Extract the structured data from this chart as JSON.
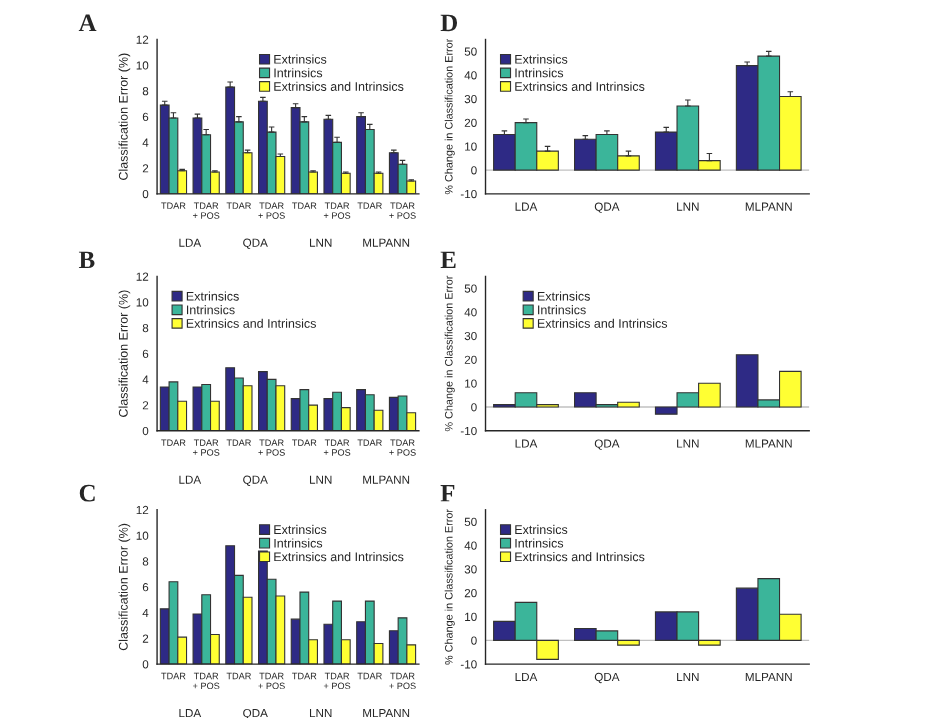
{
  "chart_data": [
    {
      "type": "bar",
      "title": "A",
      "ylabel": "Classification Error (%)",
      "categories": [
        "TDAR",
        "TDAR\n+ POS",
        "TDAR",
        "TDAR\n+ POS",
        "TDAR",
        "TDAR\n+ POS",
        "TDAR",
        "TDAR\n+ POS"
      ],
      "annotations": [
        "LDA",
        "QDA",
        "LNN",
        "MLPANN"
      ],
      "ylim": [
        0,
        12
      ],
      "yticks": [
        0,
        2,
        4,
        6,
        8,
        10,
        12
      ],
      "legend": "top right",
      "series": [
        {
          "name": "Extrinsics",
          "color": "#2e2a85",
          "values": [
            6.9,
            5.9,
            8.3,
            7.2,
            6.7,
            5.8,
            6.0,
            3.2
          ],
          "errors": [
            0.3,
            0.3,
            0.4,
            0.3,
            0.3,
            0.3,
            0.3,
            0.2
          ]
        },
        {
          "name": "Intrinsics",
          "color": "#3bb59a",
          "values": [
            5.9,
            4.6,
            5.6,
            4.8,
            5.6,
            4.0,
            5.0,
            2.3
          ],
          "errors": [
            0.4,
            0.4,
            0.4,
            0.4,
            0.4,
            0.4,
            0.4,
            0.3
          ]
        },
        {
          "name": "Extrinsics and Intrinsics",
          "color": "#ffff33",
          "values": [
            1.8,
            1.7,
            3.2,
            2.9,
            1.7,
            1.6,
            1.6,
            1.0
          ],
          "errors": [
            0.1,
            0.1,
            0.2,
            0.2,
            0.1,
            0.1,
            0.1,
            0.1
          ]
        }
      ]
    },
    {
      "type": "bar",
      "title": "D",
      "ylabel": "% Change in Classification Error",
      "categories": [
        "LDA",
        "QDA",
        "LNN",
        "MLPANN"
      ],
      "ylim": [
        -10,
        55
      ],
      "yticks": [
        -10,
        0,
        10,
        20,
        30,
        40,
        50
      ],
      "legend": "top left",
      "ref_lines": [
        {
          "axis": "y",
          "value": 0,
          "color": "#c0c0c0"
        }
      ],
      "series": [
        {
          "name": "Extrinsics",
          "color": "#2e2a85",
          "values": [
            15,
            13,
            16,
            44
          ],
          "errors": [
            1.5,
            1.5,
            2,
            1.5
          ]
        },
        {
          "name": "Intrinsics",
          "color": "#3bb59a",
          "values": [
            20,
            15,
            27,
            48
          ],
          "errors": [
            1.5,
            1.5,
            2.5,
            2
          ]
        },
        {
          "name": "Extrinsics and Intrinsics",
          "color": "#ffff33",
          "values": [
            8,
            6,
            4,
            31
          ],
          "errors": [
            2,
            2,
            3,
            2
          ]
        }
      ]
    },
    {
      "type": "bar",
      "title": "B",
      "ylabel": "Classification Error (%)",
      "categories": [
        "TDAR",
        "TDAR\n+ POS",
        "TDAR",
        "TDAR\n+ POS",
        "TDAR",
        "TDAR\n+ POS",
        "TDAR",
        "TDAR\n+ POS"
      ],
      "annotations": [
        "LDA",
        "QDA",
        "LNN",
        "MLPANN"
      ],
      "ylim": [
        0,
        12
      ],
      "yticks": [
        0,
        2,
        4,
        6,
        8,
        10,
        12
      ],
      "legend": "top left",
      "series": [
        {
          "name": "Extrinsics",
          "color": "#2e2a85",
          "values": [
            3.4,
            3.4,
            4.9,
            4.6,
            2.5,
            2.5,
            3.2,
            2.6
          ]
        },
        {
          "name": "Intrinsics",
          "color": "#3bb59a",
          "values": [
            3.8,
            3.6,
            4.1,
            4.0,
            3.2,
            3.0,
            2.8,
            2.7
          ]
        },
        {
          "name": "Extrinsics and Intrinsics",
          "color": "#ffff33",
          "values": [
            2.3,
            2.3,
            3.5,
            3.5,
            2.0,
            1.8,
            1.6,
            1.4
          ]
        }
      ]
    },
    {
      "type": "bar",
      "title": "E",
      "ylabel": "% Change in Classification Error",
      "categories": [
        "LDA",
        "QDA",
        "LNN",
        "MLPANN"
      ],
      "ylim": [
        -10,
        55
      ],
      "yticks": [
        -10,
        0,
        10,
        20,
        30,
        40,
        50
      ],
      "legend": "top left",
      "ref_lines": [
        {
          "axis": "y",
          "value": 0,
          "color": "#c0c0c0"
        }
      ],
      "series": [
        {
          "name": "Extrinsics",
          "color": "#2e2a85",
          "values": [
            1,
            6,
            -3,
            22
          ]
        },
        {
          "name": "Intrinsics",
          "color": "#3bb59a",
          "values": [
            6,
            1,
            6,
            3
          ]
        },
        {
          "name": "Extrinsics and Intrinsics",
          "color": "#ffff33",
          "values": [
            1,
            2,
            10,
            15
          ]
        }
      ]
    },
    {
      "type": "bar",
      "title": "C",
      "ylabel": "Classification Error (%)",
      "categories": [
        "TDAR",
        "TDAR\n+ POS",
        "TDAR",
        "TDAR\n+ POS",
        "TDAR",
        "TDAR\n+ POS",
        "TDAR",
        "TDAR\n+ POS"
      ],
      "annotations": [
        "LDA",
        "QDA",
        "LNN",
        "MLPANN"
      ],
      "ylim": [
        0,
        12
      ],
      "yticks": [
        0,
        2,
        4,
        6,
        8,
        10,
        12
      ],
      "legend": "top right",
      "series": [
        {
          "name": "Extrinsics",
          "color": "#2e2a85",
          "values": [
            4.3,
            3.9,
            9.2,
            8.8,
            3.5,
            3.1,
            3.3,
            2.6
          ]
        },
        {
          "name": "Intrinsics",
          "color": "#3bb59a",
          "values": [
            6.4,
            5.4,
            6.9,
            6.6,
            5.6,
            4.9,
            4.9,
            3.6
          ]
        },
        {
          "name": "Extrinsics and Intrinsics",
          "color": "#ffff33",
          "values": [
            2.1,
            2.3,
            5.2,
            5.3,
            1.9,
            1.9,
            1.6,
            1.5
          ]
        }
      ]
    },
    {
      "type": "bar",
      "title": "F",
      "ylabel": "% Change in Classification Error",
      "categories": [
        "LDA",
        "QDA",
        "LNN",
        "MLPANN"
      ],
      "ylim": [
        -10,
        55
      ],
      "yticks": [
        -10,
        0,
        10,
        20,
        30,
        40,
        50
      ],
      "legend": "top left",
      "ref_lines": [
        {
          "axis": "y",
          "value": 0,
          "color": "#c0c0c0"
        }
      ],
      "series": [
        {
          "name": "Extrinsics",
          "color": "#2e2a85",
          "values": [
            8,
            5,
            12,
            22
          ]
        },
        {
          "name": "Intrinsics",
          "color": "#3bb59a",
          "values": [
            16,
            4,
            12,
            26
          ]
        },
        {
          "name": "Extrinsics and Intrinsics",
          "color": "#ffff33",
          "values": [
            -8,
            -2,
            -2,
            11
          ]
        }
      ]
    }
  ]
}
